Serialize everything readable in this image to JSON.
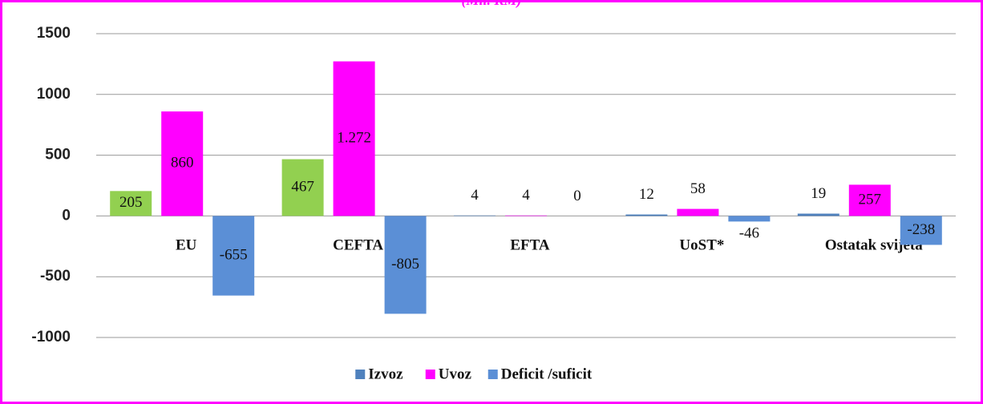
{
  "chart_data": {
    "type": "bar",
    "title": "(Mil. KM)",
    "categories": [
      "EU",
      "CEFTA",
      "EFTA",
      "UoST*",
      "Ostatak svijeta"
    ],
    "series": [
      {
        "name": "Izvoz",
        "color": "#4f81bd",
        "colors": [
          "#92d050",
          "#92d050",
          "#4f81bd",
          "#4f81bd",
          "#4f81bd"
        ],
        "values": [
          205,
          467,
          4,
          12,
          19
        ]
      },
      {
        "name": "Uvoz",
        "color": "#ff00ff",
        "values": [
          860,
          1272,
          4,
          58,
          257
        ],
        "value_labels": [
          "860",
          "1.272",
          "4",
          "58",
          "257"
        ]
      },
      {
        "name": "Deficit /suficit",
        "color": "#5b8fd6",
        "values": [
          -655,
          -805,
          0,
          -46,
          -238
        ]
      }
    ],
    "ylim": [
      -1000,
      1500
    ],
    "yticks": [
      -1000,
      -500,
      0,
      500,
      1000,
      1500
    ],
    "grid": true,
    "legend": "bottom"
  }
}
